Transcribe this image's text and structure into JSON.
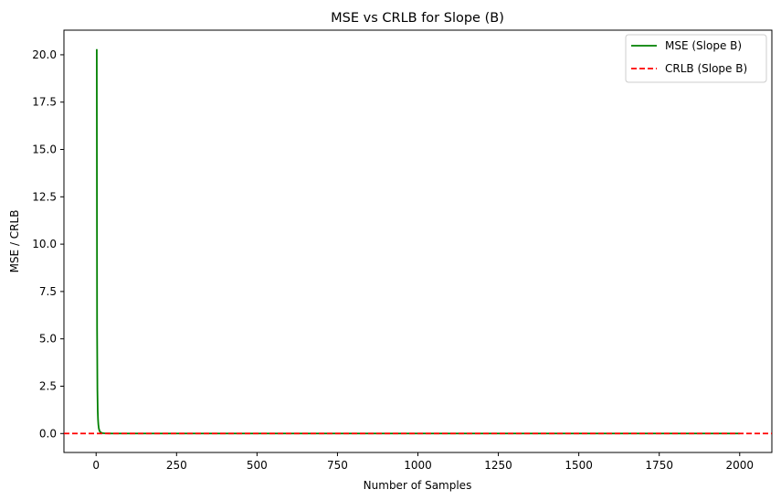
{
  "chart_data": {
    "type": "line",
    "title": "MSE vs CRLB for Slope (B)",
    "xlabel": "Number of Samples",
    "ylabel": "MSE / CRLB",
    "xlim": [
      -100,
      2100
    ],
    "ylim": [
      -1.0,
      21.3
    ],
    "xticks": [
      0,
      250,
      500,
      750,
      1000,
      1250,
      1500,
      1750,
      2000
    ],
    "yticks": [
      0.0,
      2.5,
      5.0,
      7.5,
      10.0,
      12.5,
      15.0,
      17.5,
      20.0
    ],
    "xtick_labels": [
      "0",
      "250",
      "500",
      "750",
      "1000",
      "1250",
      "1500",
      "1750",
      "2000"
    ],
    "ytick_labels": [
      "0.0",
      "2.5",
      "5.0",
      "7.5",
      "10.0",
      "12.5",
      "15.0",
      "17.5",
      "20.0"
    ],
    "grid": false,
    "legend_position": "top-right",
    "series": [
      {
        "name": "MSE (Slope B)",
        "color": "#008000",
        "style": "solid",
        "x": [
          2,
          3,
          4,
          5,
          6,
          7,
          8,
          9,
          10,
          12,
          15,
          20,
          25,
          30,
          40,
          50,
          100,
          200,
          500,
          1000,
          1500,
          2000
        ],
        "y": [
          20.3,
          5.5,
          2.3,
          1.2,
          0.72,
          0.47,
          0.32,
          0.23,
          0.17,
          0.1,
          0.05,
          0.02,
          0.012,
          0.008,
          0.004,
          0.002,
          0.0003,
          0.0001,
          0.0,
          0.0,
          0.0,
          0.0
        ]
      },
      {
        "name": "CRLB (Slope B)",
        "color": "#ff0000",
        "style": "dashed",
        "hline": 0.0
      }
    ]
  }
}
